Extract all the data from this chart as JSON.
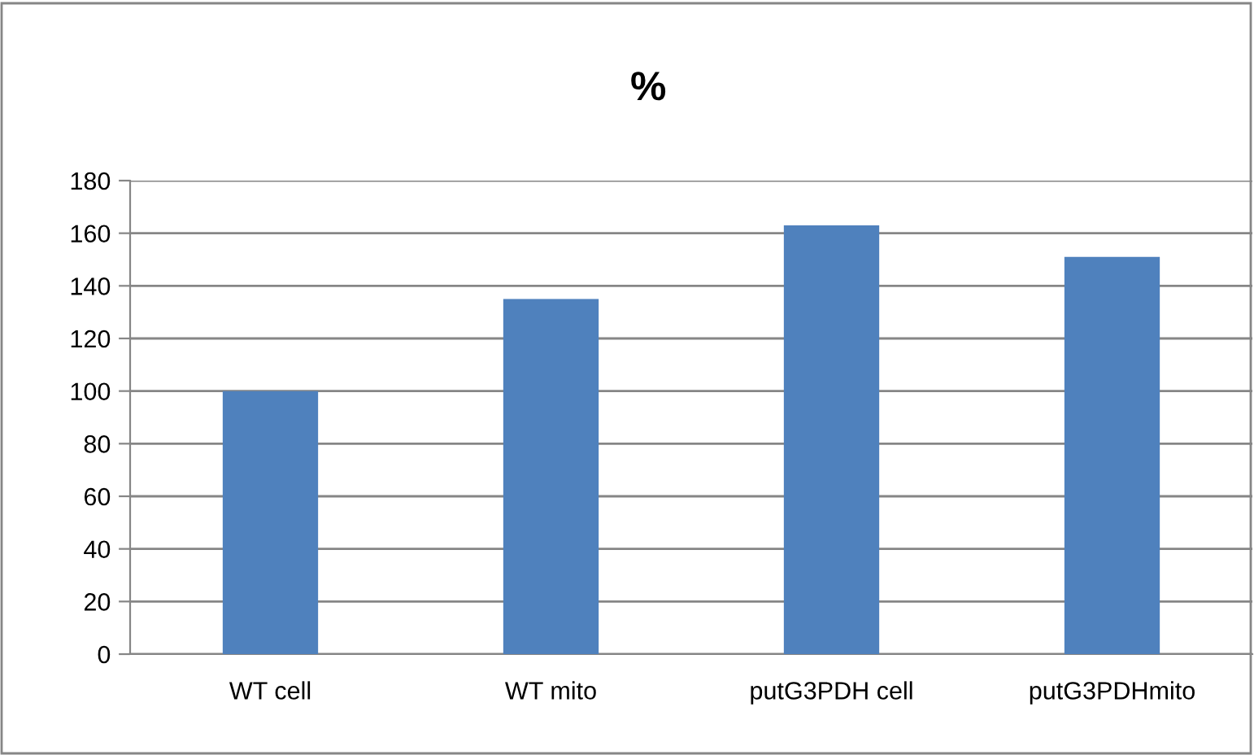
{
  "chart_data": {
    "type": "bar",
    "title": "%",
    "categories": [
      "WT cell",
      "WT mito",
      "putG3PDH cell",
      "putG3PDHmito"
    ],
    "values": [
      100,
      135,
      163,
      151
    ],
    "color": "#4f81bd",
    "ylim": [
      0,
      180
    ],
    "yticks": [
      0,
      20,
      40,
      60,
      80,
      100,
      120,
      140,
      160,
      180
    ],
    "grid": "y",
    "legend": false
  }
}
